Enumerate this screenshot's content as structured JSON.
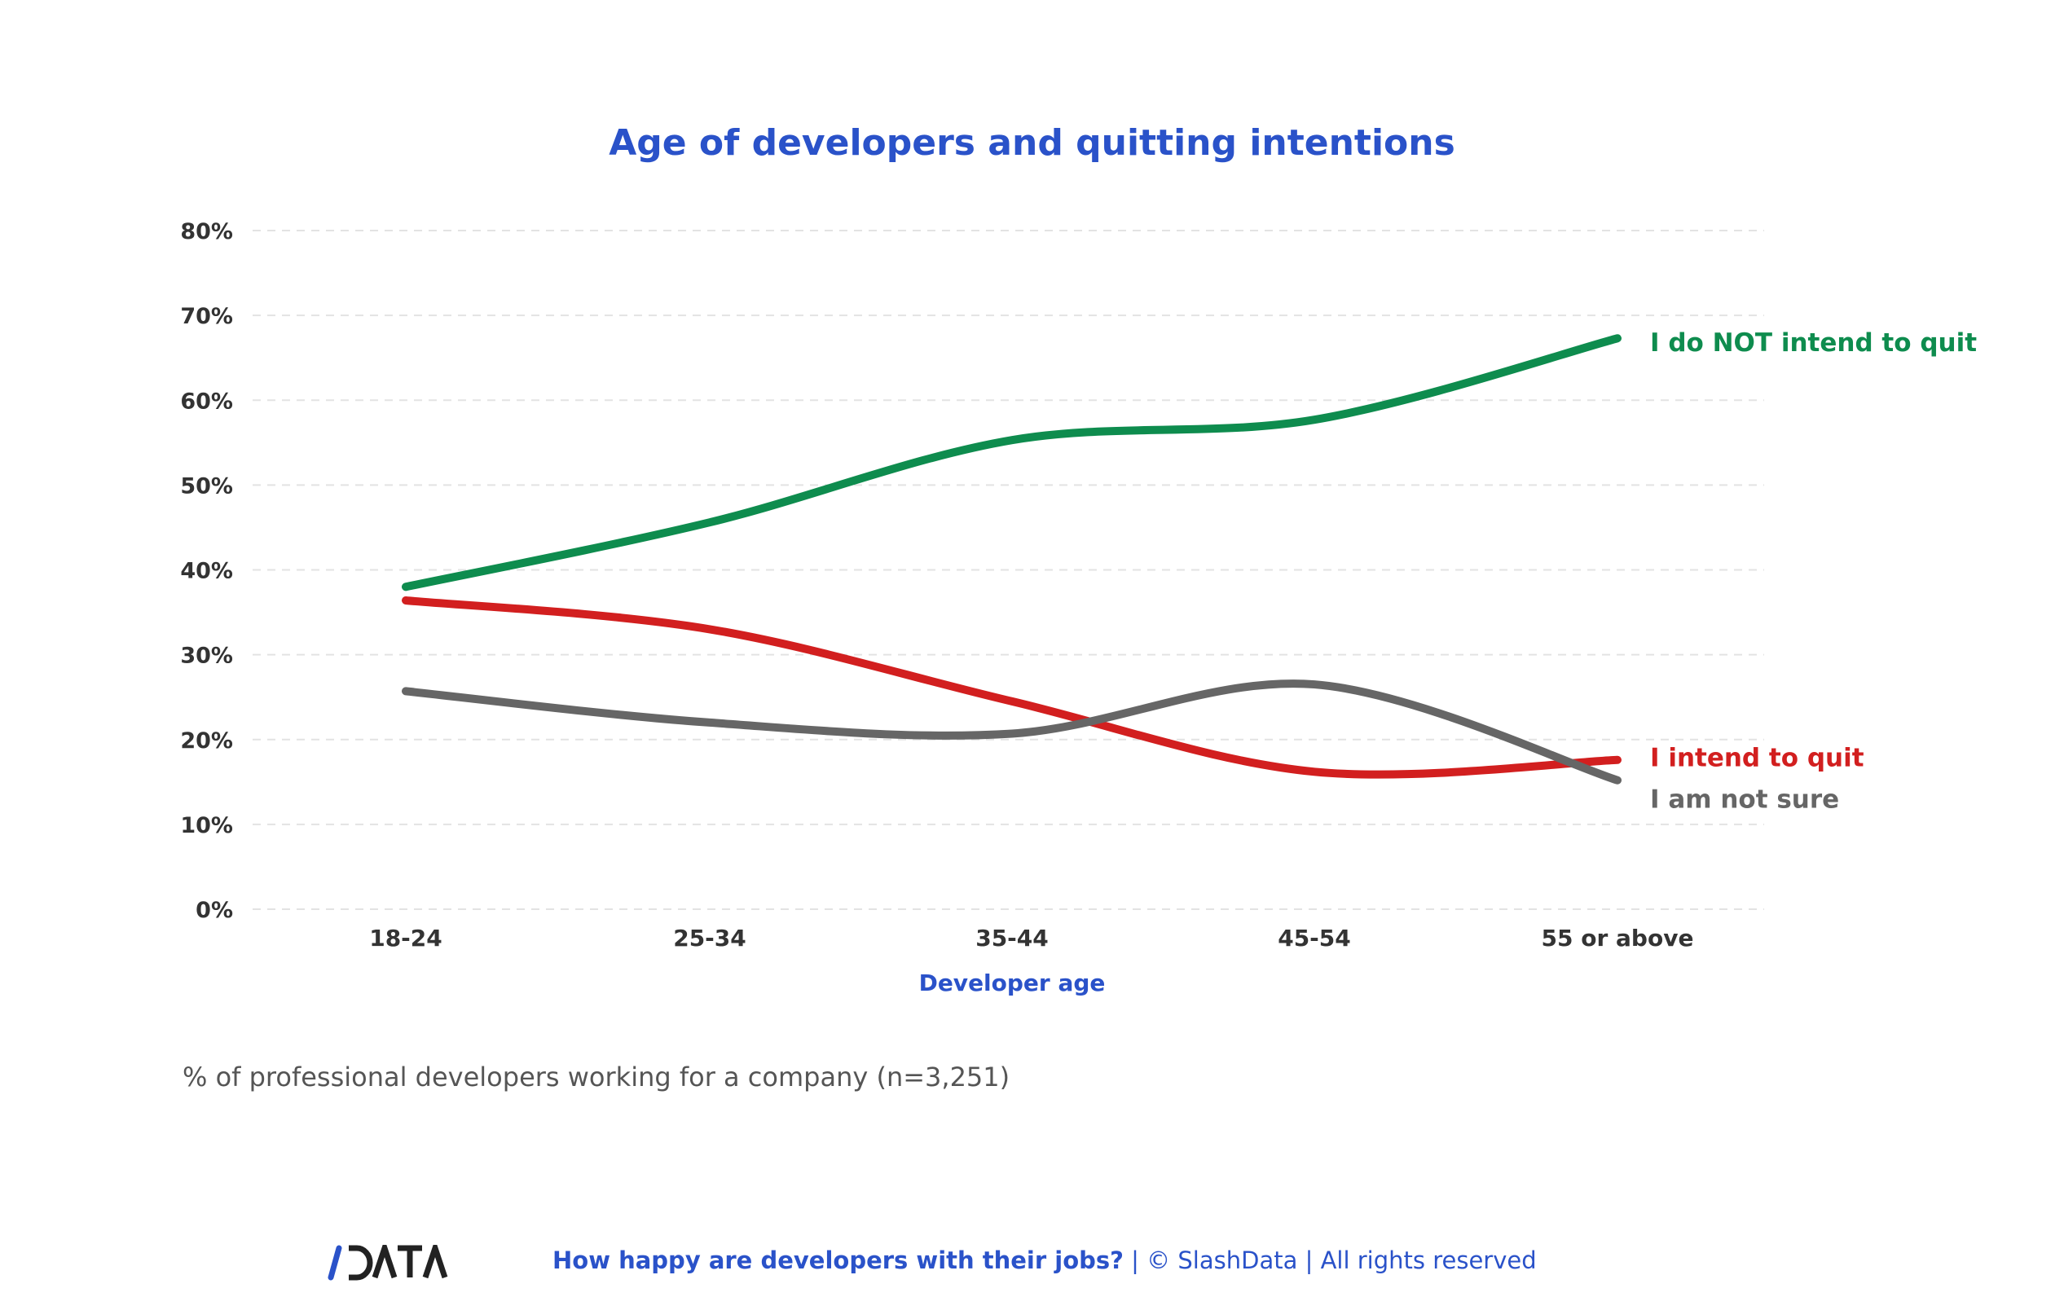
{
  "chart_data": {
    "type": "line",
    "title": "Age of developers and quitting intentions",
    "xlabel": "Developer age",
    "ylabel": "",
    "categories": [
      "18-24",
      "25-34",
      "35-44",
      "45-54",
      "55 or above"
    ],
    "ylim": [
      0,
      80
    ],
    "yticks": [
      "0%",
      "10%",
      "20%",
      "30%",
      "40%",
      "50%",
      "60%",
      "70%",
      "80%"
    ],
    "grid": true,
    "smooth": true,
    "legend": "direct labels at right end of lines",
    "series": [
      {
        "name": "I do NOT intend to quit",
        "color": "#0e8c4e",
        "values": [
          38,
          45.6,
          55.3,
          57.7,
          67.3
        ]
      },
      {
        "name": "I intend to quit",
        "color": "#d21f1f",
        "values": [
          36.4,
          33,
          24.5,
          16.2,
          17.6
        ]
      },
      {
        "name": "I am not sure",
        "color": "#666666",
        "values": [
          25.7,
          22,
          20.7,
          26.5,
          15.2
        ]
      }
    ]
  },
  "note": "% of professional developers working for a company (n=3,251)",
  "footer": {
    "logo": "/DATA",
    "report": "How happy are developers with their jobs?",
    "copyright": " | © SlashData | All rights reserved"
  },
  "colors": {
    "accent": "#2a52c9",
    "axis_text": "#333333"
  }
}
